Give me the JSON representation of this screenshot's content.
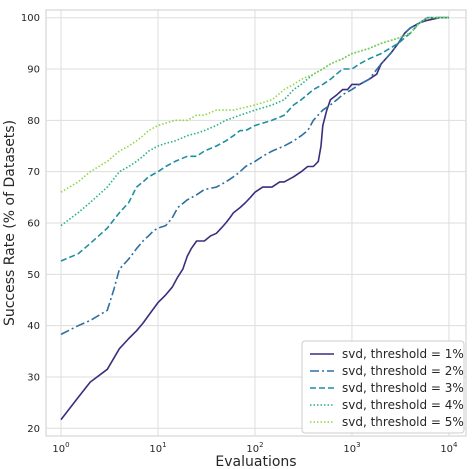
{
  "chart_data": {
    "type": "line",
    "title": "",
    "xlabel": "Evaluations",
    "ylabel": "Success Rate (% of Datasets)",
    "x_scale": "log",
    "xlim": [
      0.7,
      15000
    ],
    "ylim": [
      18.5,
      101.5
    ],
    "x_ticks": [
      1,
      10,
      100,
      1000,
      10000
    ],
    "x_tick_labels": [
      {
        "base": "10",
        "exp": "0"
      },
      {
        "base": "10",
        "exp": "1"
      },
      {
        "base": "10",
        "exp": "2"
      },
      {
        "base": "10",
        "exp": "3"
      },
      {
        "base": "10",
        "exp": "4"
      }
    ],
    "y_ticks": [
      20,
      30,
      40,
      50,
      60,
      70,
      80,
      90,
      100
    ],
    "grid": true,
    "legend_position": "lower right",
    "series": [
      {
        "name": "svd, threshold = 1%",
        "color": "#3b2e7e",
        "dash": "solid",
        "points": [
          [
            1,
            21.7
          ],
          [
            1.5,
            26
          ],
          [
            2,
            29
          ],
          [
            3,
            31.5
          ],
          [
            4,
            35.5
          ],
          [
            5,
            37.5
          ],
          [
            6,
            39
          ],
          [
            7,
            40.5
          ],
          [
            8,
            42
          ],
          [
            10,
            44.5
          ],
          [
            12,
            46
          ],
          [
            14,
            47.5
          ],
          [
            16,
            49.5
          ],
          [
            18,
            51
          ],
          [
            20,
            53.5
          ],
          [
            22,
            55
          ],
          [
            25,
            56.5
          ],
          [
            30,
            56.5
          ],
          [
            35,
            57.5
          ],
          [
            40,
            58
          ],
          [
            45,
            59
          ],
          [
            50,
            60
          ],
          [
            55,
            61
          ],
          [
            60,
            62
          ],
          [
            70,
            63
          ],
          [
            80,
            64
          ],
          [
            90,
            65
          ],
          [
            100,
            66
          ],
          [
            120,
            67
          ],
          [
            150,
            67
          ],
          [
            180,
            68
          ],
          [
            200,
            68
          ],
          [
            250,
            69
          ],
          [
            300,
            70
          ],
          [
            350,
            71
          ],
          [
            400,
            71
          ],
          [
            450,
            72
          ],
          [
            480,
            75
          ],
          [
            500,
            79
          ],
          [
            550,
            82
          ],
          [
            600,
            84
          ],
          [
            700,
            85
          ],
          [
            800,
            86
          ],
          [
            900,
            86
          ],
          [
            1000,
            87
          ],
          [
            1200,
            87
          ],
          [
            1500,
            88
          ],
          [
            1800,
            89
          ],
          [
            2000,
            91
          ],
          [
            2500,
            93
          ],
          [
            3000,
            95
          ],
          [
            3500,
            97
          ],
          [
            4000,
            98
          ],
          [
            5000,
            99
          ],
          [
            6000,
            99.5
          ],
          [
            8000,
            100
          ],
          [
            10000,
            100
          ]
        ]
      },
      {
        "name": "svd, threshold = 2%",
        "color": "#2e6fa0",
        "dash": "dashdot",
        "points": [
          [
            1,
            38.3
          ],
          [
            1.5,
            40
          ],
          [
            2,
            41
          ],
          [
            3,
            43
          ],
          [
            3.5,
            47
          ],
          [
            4,
            51
          ],
          [
            5,
            53
          ],
          [
            6,
            55
          ],
          [
            7,
            56.5
          ],
          [
            8,
            57.5
          ],
          [
            9,
            58.5
          ],
          [
            10,
            59
          ],
          [
            12,
            59.5
          ],
          [
            14,
            61
          ],
          [
            16,
            63
          ],
          [
            20,
            64.5
          ],
          [
            25,
            65.5
          ],
          [
            30,
            66.5
          ],
          [
            40,
            67
          ],
          [
            50,
            68
          ],
          [
            60,
            69
          ],
          [
            70,
            70
          ],
          [
            80,
            71
          ],
          [
            100,
            72
          ],
          [
            120,
            73
          ],
          [
            150,
            74
          ],
          [
            200,
            75
          ],
          [
            250,
            76
          ],
          [
            300,
            77
          ],
          [
            350,
            78
          ],
          [
            400,
            80
          ],
          [
            500,
            82
          ],
          [
            600,
            83
          ],
          [
            700,
            84
          ],
          [
            800,
            85
          ],
          [
            1000,
            86
          ],
          [
            1200,
            87
          ],
          [
            1500,
            88
          ],
          [
            2000,
            91
          ],
          [
            2500,
            93
          ],
          [
            3000,
            95
          ],
          [
            3500,
            97
          ],
          [
            4000,
            98
          ],
          [
            5000,
            99
          ],
          [
            6000,
            100
          ],
          [
            10000,
            100
          ]
        ]
      },
      {
        "name": "svd, threshold = 3%",
        "color": "#1f8fa0",
        "dash": "dashed",
        "points": [
          [
            1,
            52.6
          ],
          [
            1.5,
            54
          ],
          [
            2,
            56
          ],
          [
            3,
            59
          ],
          [
            4,
            62
          ],
          [
            5,
            64
          ],
          [
            6,
            67
          ],
          [
            7,
            68
          ],
          [
            8,
            69
          ],
          [
            10,
            70
          ],
          [
            12,
            71
          ],
          [
            15,
            72
          ],
          [
            20,
            73
          ],
          [
            25,
            73
          ],
          [
            30,
            74
          ],
          [
            40,
            75
          ],
          [
            50,
            76
          ],
          [
            60,
            77
          ],
          [
            70,
            78
          ],
          [
            80,
            78
          ],
          [
            100,
            79
          ],
          [
            150,
            80
          ],
          [
            200,
            81
          ],
          [
            250,
            83
          ],
          [
            300,
            84
          ],
          [
            400,
            86
          ],
          [
            500,
            87
          ],
          [
            600,
            88
          ],
          [
            800,
            90
          ],
          [
            1000,
            90
          ],
          [
            1200,
            91
          ],
          [
            1500,
            92
          ],
          [
            2000,
            93
          ],
          [
            3000,
            95
          ],
          [
            4000,
            97
          ],
          [
            5000,
            99
          ],
          [
            6000,
            100
          ],
          [
            10000,
            100
          ]
        ]
      },
      {
        "name": "svd, threshold = 4%",
        "color": "#27b08c",
        "dash": "dotted",
        "points": [
          [
            1,
            59.5
          ],
          [
            1.5,
            62
          ],
          [
            2,
            64
          ],
          [
            3,
            67
          ],
          [
            4,
            70
          ],
          [
            5,
            71
          ],
          [
            6,
            72
          ],
          [
            7,
            73
          ],
          [
            8,
            74
          ],
          [
            10,
            75
          ],
          [
            12,
            75.5
          ],
          [
            15,
            76
          ],
          [
            20,
            77
          ],
          [
            25,
            77.5
          ],
          [
            30,
            78
          ],
          [
            40,
            79
          ],
          [
            50,
            80
          ],
          [
            70,
            81
          ],
          [
            100,
            82
          ],
          [
            150,
            83
          ],
          [
            200,
            84
          ],
          [
            250,
            86
          ],
          [
            300,
            87
          ],
          [
            400,
            89
          ],
          [
            500,
            90
          ],
          [
            600,
            91
          ],
          [
            800,
            92
          ],
          [
            1000,
            93
          ],
          [
            1500,
            94
          ],
          [
            2000,
            95
          ],
          [
            3000,
            96
          ],
          [
            4000,
            97
          ],
          [
            5000,
            99
          ],
          [
            6000,
            100
          ],
          [
            10000,
            100
          ]
        ]
      },
      {
        "name": "svd, threshold = 5%",
        "color": "#8fd744",
        "dash": "dotted",
        "points": [
          [
            1,
            66
          ],
          [
            1.5,
            68
          ],
          [
            2,
            70
          ],
          [
            3,
            72
          ],
          [
            4,
            74
          ],
          [
            5,
            75
          ],
          [
            6,
            76
          ],
          [
            7,
            77
          ],
          [
            8,
            78
          ],
          [
            10,
            79
          ],
          [
            15,
            80
          ],
          [
            20,
            80
          ],
          [
            25,
            81
          ],
          [
            30,
            81
          ],
          [
            40,
            82
          ],
          [
            60,
            82
          ],
          [
            100,
            83
          ],
          [
            150,
            84
          ],
          [
            200,
            86
          ],
          [
            250,
            87
          ],
          [
            300,
            88
          ],
          [
            400,
            89
          ],
          [
            500,
            90
          ],
          [
            600,
            91
          ],
          [
            800,
            92
          ],
          [
            1000,
            93
          ],
          [
            1500,
            94
          ],
          [
            2000,
            95
          ],
          [
            3000,
            96
          ],
          [
            4000,
            97
          ],
          [
            5000,
            99
          ],
          [
            6000,
            100
          ],
          [
            10000,
            100
          ]
        ]
      }
    ]
  }
}
